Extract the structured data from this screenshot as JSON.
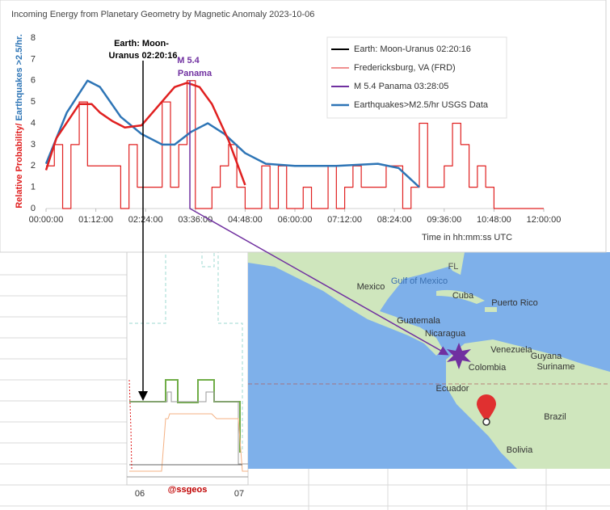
{
  "chart_data": {
    "type": "line",
    "title": "Incoming Energy from Planetary Geometry by Magnetic Anomaly 2023-10-06",
    "y_label_parts": [
      {
        "text": "Relative Probability/",
        "color": "#e02020"
      },
      {
        "text": "Earthquakes >2.5/hr.",
        "color": "#2e75b6"
      }
    ],
    "x_label": "Time in hh:mm:ss UTC",
    "xlim": [
      0,
      12
    ],
    "xticks": [
      {
        "value": 0,
        "label": "00:00:00"
      },
      {
        "value": 1.2,
        "label": "01:12:00"
      },
      {
        "value": 2.4,
        "label": "02:24:00"
      },
      {
        "value": 3.6,
        "label": "03:36:00"
      },
      {
        "value": 4.8,
        "label": "04:48:00"
      },
      {
        "value": 6,
        "label": "06:00:00"
      },
      {
        "value": 7.2,
        "label": "07:12:00"
      },
      {
        "value": 8.4,
        "label": "08:24:00"
      },
      {
        "value": 9.6,
        "label": "09:36:00"
      },
      {
        "value": 10.8,
        "label": "10:48:00"
      },
      {
        "value": 12,
        "label": "12:00:00"
      }
    ],
    "ylim": [
      0,
      8
    ],
    "yticks": [
      0,
      1,
      2,
      3,
      4,
      5,
      6,
      7,
      8
    ],
    "events": [
      {
        "name": "Earth: Moon-Uranus 02:20:16",
        "x": 2.338,
        "color": "#000000",
        "annotation": [
          "Earth: Moon-",
          "Uranus 02:20:16"
        ]
      },
      {
        "name": "M 5.4 Panama 03:28:05",
        "x": 3.468,
        "color": "#7030a0",
        "annotation": [
          "M 5.4",
          "Panama"
        ]
      }
    ],
    "series": [
      {
        "name": "Fredericksburg, VA (FRD)",
        "color": "#e02020",
        "step": true,
        "x": [
          0,
          0.2,
          0.4,
          0.6,
          0.8,
          1,
          1.2,
          1.4,
          1.6,
          1.8,
          2,
          2.2,
          2.4,
          2.6,
          2.8,
          3,
          3.2,
          3.4,
          3.6,
          3.8,
          4,
          4.2,
          4.4,
          4.6,
          4.8,
          5,
          5.2,
          5.4,
          5.6,
          5.8,
          6,
          6.2,
          6.4,
          6.6,
          6.8,
          7,
          7.2,
          7.4,
          7.6,
          7.8,
          8,
          8.2,
          8.4,
          8.6,
          8.8,
          9,
          9.2,
          9.4,
          9.6,
          9.8,
          10,
          10.2,
          10.4,
          10.6,
          10.8,
          11,
          11.2,
          11.4,
          11.6,
          11.8,
          12
        ],
        "values": [
          2,
          3,
          0,
          3,
          5,
          2,
          2,
          2,
          2,
          0,
          3,
          1,
          1,
          1,
          5,
          1,
          3,
          6,
          0,
          0,
          1,
          2,
          3,
          1,
          0,
          0,
          2,
          0,
          2,
          0,
          0,
          1,
          0,
          0,
          2,
          0,
          1,
          2,
          1,
          1,
          1,
          2,
          2,
          0,
          1,
          4,
          1,
          1,
          2,
          4,
          3,
          1,
          2,
          1,
          0,
          0,
          0,
          0,
          0,
          0,
          0
        ]
      },
      {
        "name": "Earthquakes>M2.5/hr USGS Data",
        "color": "#2e75b6",
        "x": [
          0,
          0.5,
          1,
          1.3,
          1.8,
          2.3,
          2.8,
          3.1,
          3.5,
          3.9,
          4.3,
          4.8,
          5.3,
          6,
          7,
          8,
          8.5,
          9
        ],
        "values": [
          2.1,
          4.5,
          6,
          5.7,
          4.3,
          3.5,
          3,
          3,
          3.6,
          4,
          3.5,
          2.6,
          2.1,
          2,
          2,
          2.1,
          1.9,
          1
        ]
      }
    ],
    "smoothed": {
      "color": "#e02020",
      "x": [
        0,
        0.25,
        0.8,
        1.1,
        1.3,
        1.6,
        1.9,
        2.3,
        2.7,
        3.1,
        3.4,
        3.7,
        4,
        4.4,
        4.8
      ],
      "values": [
        1.8,
        3.3,
        4.9,
        4.9,
        4.5,
        4.1,
        3.8,
        3.9,
        4.8,
        5.7,
        5.9,
        5.7,
        4.9,
        3.2,
        1.1
      ]
    }
  },
  "inset": {
    "labels": [
      "06",
      "@ssgeos",
      "07"
    ]
  },
  "map": {
    "labels": [
      "FL",
      "Gulf of Mexico",
      "Mexico",
      "Cuba",
      "Puerto Rico",
      "Guatemala",
      "Nicaragua",
      "Venezuela",
      "Guyana",
      "Suriname",
      "Colombia",
      "Ecuador",
      "Brazil",
      "Bolivia"
    ]
  }
}
